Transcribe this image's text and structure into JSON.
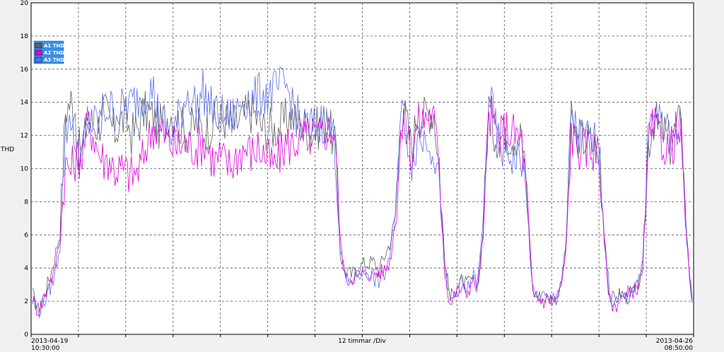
{
  "chart_data": {
    "type": "line",
    "ylabel": "THD",
    "ylim": [
      0,
      20
    ],
    "y_ticks": [
      "0",
      "2",
      "4",
      "6",
      "8",
      "10",
      "12",
      "14",
      "16",
      "18",
      "20"
    ],
    "x_division_label": "12 timmar /Div",
    "x_start": {
      "date": "2013-04-19",
      "time": "10:30:00"
    },
    "x_end": {
      "date": "2013-04-26",
      "time": "08:50:00"
    },
    "x_divisions": 14,
    "grid": true,
    "legend_position": "top-left",
    "series": [
      {
        "name": "A1 THD",
        "color": "#606060",
        "values": [
          2.4,
          1.5,
          2.3,
          3.3,
          4.6,
          6.2,
          13.5,
          14.1,
          11.3,
          10.9,
          13.0,
          12.7,
          12.6,
          13.5,
          12.8,
          12.2,
          12.9,
          13.0,
          12.1,
          12.4,
          13.3,
          13.4,
          13.1,
          12.5,
          13.0,
          13.4,
          13.1,
          12.6,
          12.2,
          12.4,
          12.7,
          12.3,
          12.5,
          12.8,
          12.9,
          13.0,
          12.5,
          12.7,
          13.0,
          13.3,
          13.5,
          12.9,
          12.4,
          12.5,
          12.4,
          12.6,
          12.9,
          13.2,
          12.8,
          12.7,
          12.4,
          12.1,
          12.5,
          12.8,
          12.4,
          11.7,
          4.8,
          3.8,
          3.6,
          3.9,
          4.2,
          4.3,
          4.4,
          3.9,
          4.7,
          5.5,
          7.1,
          13.6,
          12.9,
          11.1,
          13.4,
          13.0,
          13.5,
          13.5,
          10.0,
          4.4,
          2.1,
          2.9,
          3.2,
          3.0,
          3.3,
          2.9,
          6.4,
          14.0,
          12.2,
          11.8,
          12.3,
          12.0,
          12.0,
          12.0,
          8.2,
          2.6,
          2.3,
          2.2,
          2.2,
          2.1,
          2.7,
          5.0,
          12.8,
          11.9,
          11.8,
          11.7,
          11.5,
          11.2,
          5.9,
          2.2,
          2.1,
          2.5,
          2.2,
          2.5,
          2.8,
          4.0,
          11.5,
          13.0,
          12.4,
          12.2,
          11.4,
          12.4,
          12.9,
          5.8,
          2.0
        ]
      },
      {
        "name": "A2 THD",
        "color": "#e000e0",
        "values": [
          2.2,
          1.4,
          2.0,
          3.1,
          3.7,
          6.0,
          10.2,
          9.9,
          10.7,
          10.8,
          12.6,
          12.2,
          11.0,
          10.5,
          10.6,
          9.9,
          10.0,
          9.8,
          9.6,
          9.7,
          10.5,
          11.8,
          12.5,
          12.3,
          12.0,
          11.5,
          11.3,
          11.4,
          11.5,
          11.3,
          11.3,
          11.6,
          11.2,
          10.4,
          10.7,
          10.4,
          10.1,
          10.7,
          11.1,
          11.2,
          10.9,
          11.3,
          10.9,
          10.5,
          10.1,
          10.8,
          11.5,
          11.4,
          11.7,
          11.8,
          11.9,
          12.0,
          11.9,
          12.2,
          12.4,
          12.3,
          5.5,
          3.2,
          3.4,
          3.6,
          3.6,
          3.6,
          3.7,
          3.7,
          3.9,
          4.4,
          6.8,
          12.0,
          12.5,
          10.8,
          12.7,
          12.9,
          13.4,
          12.9,
          10.2,
          3.7,
          1.8,
          2.5,
          2.8,
          2.5,
          3.2,
          2.8,
          5.8,
          13.6,
          12.5,
          11.8,
          12.4,
          12.2,
          12.0,
          11.7,
          8.1,
          2.3,
          2.2,
          2.0,
          2.1,
          2.0,
          2.6,
          4.7,
          12.1,
          11.3,
          11.2,
          11.3,
          11.2,
          11.0,
          5.6,
          2.0,
          1.7,
          2.2,
          2.1,
          2.6,
          2.8,
          3.6,
          11.6,
          12.4,
          12.0,
          11.4,
          11.1,
          12.1,
          11.8,
          5.5,
          2.1
        ]
      },
      {
        "name": "A3 THD",
        "color": "#5a6ee8",
        "values": [
          2.1,
          1.3,
          1.9,
          2.6,
          3.5,
          5.4,
          12.1,
          13.4,
          11.8,
          10.7,
          12.9,
          12.6,
          12.8,
          13.6,
          13.6,
          13.5,
          13.5,
          13.8,
          13.9,
          14.2,
          14.4,
          14.9,
          14.6,
          13.1,
          12.5,
          12.0,
          12.5,
          13.4,
          14.5,
          14.3,
          13.6,
          14.7,
          14.0,
          13.4,
          13.1,
          13.1,
          13.0,
          13.3,
          14.1,
          14.3,
          14.0,
          14.4,
          14.6,
          14.4,
          14.7,
          14.8,
          15.0,
          14.3,
          13.2,
          12.6,
          12.5,
          12.5,
          12.6,
          12.9,
          12.5,
          11.7,
          5.0,
          3.2,
          3.2,
          3.7,
          3.6,
          3.9,
          3.3,
          3.2,
          3.5,
          4.8,
          6.9,
          14.3,
          12.4,
          10.5,
          11.8,
          11.8,
          12.0,
          11.1,
          9.4,
          3.9,
          1.9,
          2.4,
          3.1,
          2.5,
          3.6,
          3.1,
          6.9,
          14.5,
          12.7,
          11.2,
          11.2,
          10.8,
          10.6,
          10.7,
          7.5,
          2.5,
          2.3,
          2.3,
          2.0,
          2.4,
          2.9,
          5.0,
          13.6,
          12.0,
          11.8,
          11.8,
          11.5,
          11.6,
          6.3,
          2.3,
          1.9,
          2.1,
          2.3,
          2.8,
          3.0,
          4.2,
          12.1,
          13.0,
          12.8,
          12.3,
          11.5,
          12.6,
          12.5,
          5.8,
          1.9
        ]
      }
    ]
  }
}
